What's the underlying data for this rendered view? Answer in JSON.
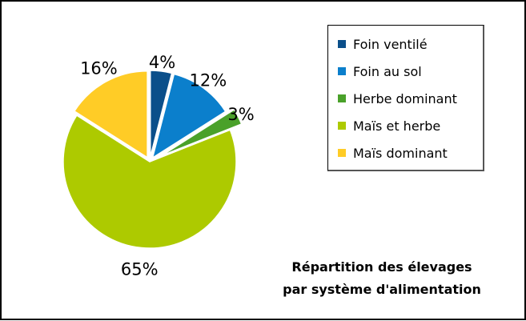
{
  "chart_data": {
    "type": "pie",
    "title_lines": [
      "Répartition des élevages",
      "par système d'alimentation"
    ],
    "slices": [
      {
        "name": "Foin ventilé",
        "value": 4,
        "label": "4%",
        "color": "#0b4f8a"
      },
      {
        "name": "Foin au sol",
        "value": 12,
        "label": "12%",
        "color": "#0b7fcc"
      },
      {
        "name": "Herbe dominant",
        "value": 3,
        "label": "3%",
        "color": "#4aa12a"
      },
      {
        "name": "Maïs et herbe",
        "value": 65,
        "label": "65%",
        "color": "#adca00"
      },
      {
        "name": "Maïs dominant",
        "value": 16,
        "label": "16%",
        "color": "#ffcc26"
      }
    ],
    "legend_placement": "right",
    "exploded": true
  }
}
